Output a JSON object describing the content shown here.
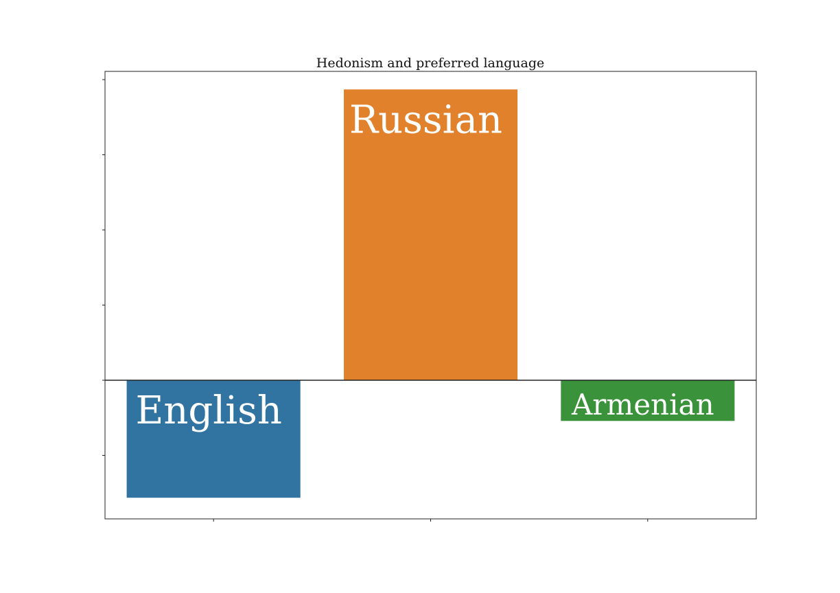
{
  "chart_data": {
    "type": "bar",
    "title": "Hedonism and preferred language",
    "xlabel": "",
    "ylabel": "",
    "categories": [
      "English",
      "Russian",
      "Armenian"
    ],
    "values": [
      -0.78,
      1.93,
      -0.27
    ],
    "ylim": [
      -0.92,
      2.05
    ],
    "baseline": 0,
    "ytick_count": 6,
    "xtick_labels_shown": false,
    "ytick_labels_shown": false,
    "grid": false,
    "legend": "none",
    "bar_labels_inside": true,
    "colors": [
      "#3274a1",
      "#e1812c",
      "#3a923a"
    ],
    "label_color": "#ffffff"
  }
}
